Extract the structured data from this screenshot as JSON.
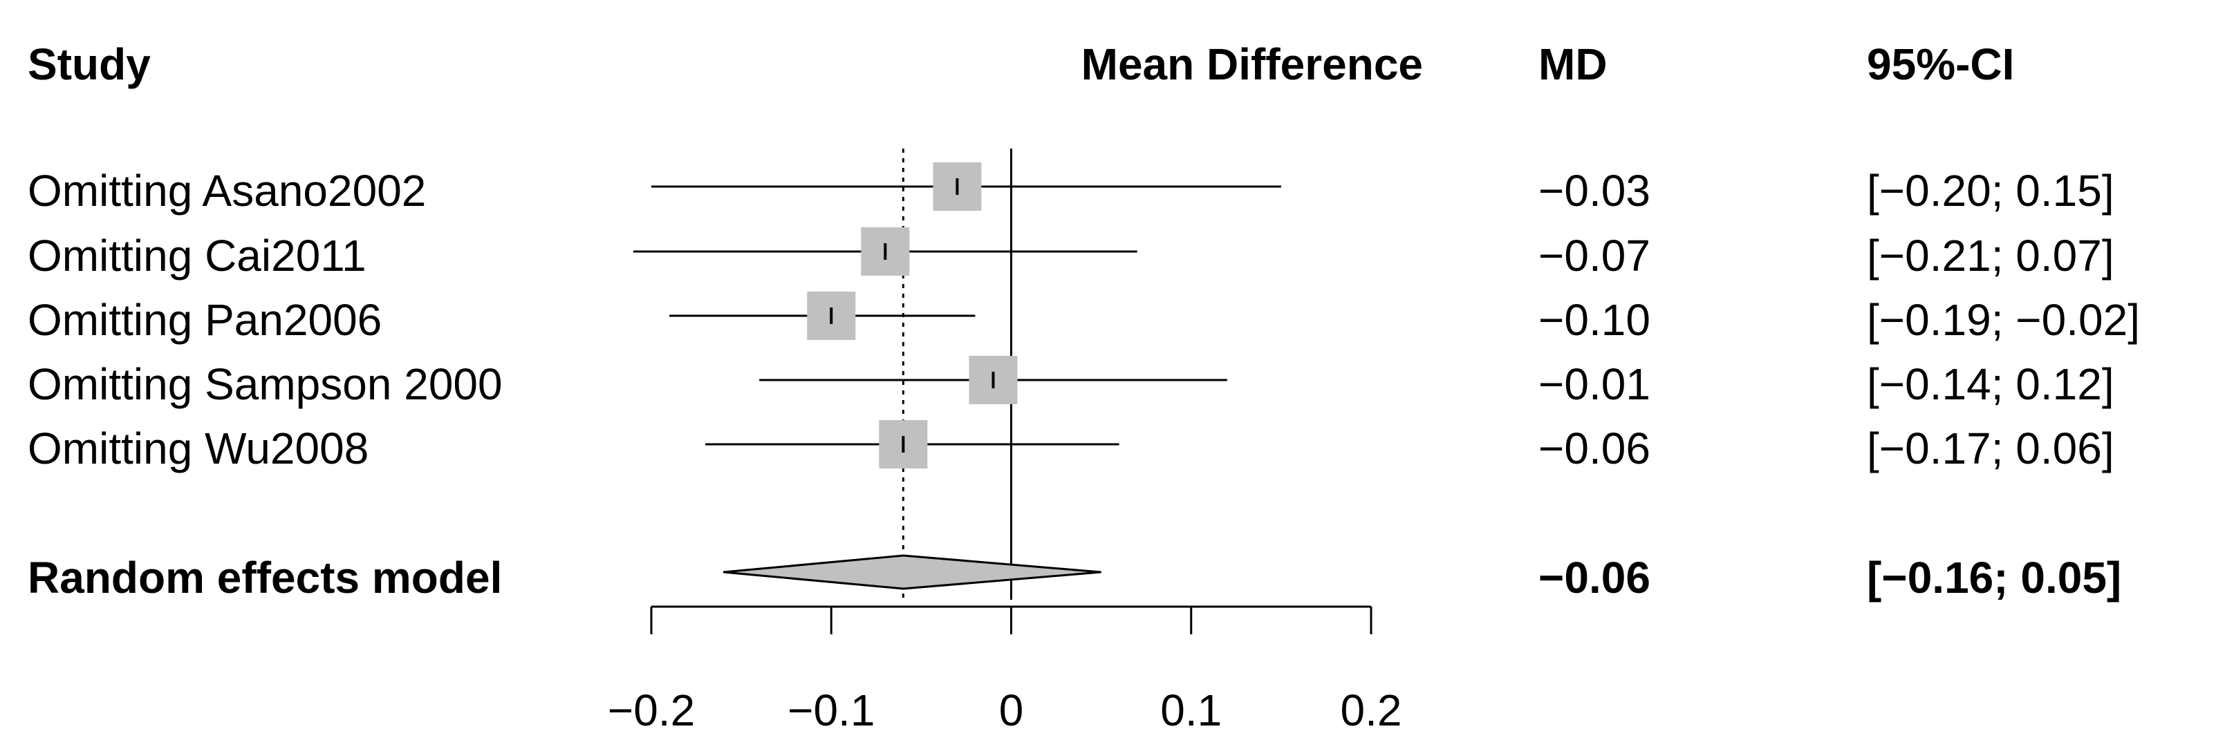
{
  "chart_data": {
    "type": "forest",
    "headers": {
      "study": "Study",
      "effect": "Mean Difference",
      "md": "MD",
      "ci": "95%-CI"
    },
    "studies": [
      {
        "label": "Omitting Asano2002",
        "md": -0.03,
        "lower": -0.2,
        "upper": 0.15,
        "md_text": "−0.03",
        "ci_text": "[−0.20;  0.15]"
      },
      {
        "label": "Omitting Cai2011",
        "md": -0.07,
        "lower": -0.21,
        "upper": 0.07,
        "md_text": "−0.07",
        "ci_text": "[−0.21;  0.07]"
      },
      {
        "label": "Omitting Pan2006",
        "md": -0.1,
        "lower": -0.19,
        "upper": -0.02,
        "md_text": "−0.10",
        "ci_text": "[−0.19; −0.02]"
      },
      {
        "label": "Omitting Sampson 2000",
        "md": -0.01,
        "lower": -0.14,
        "upper": 0.12,
        "md_text": "−0.01",
        "ci_text": "[−0.14;  0.12]"
      },
      {
        "label": "Omitting Wu2008",
        "md": -0.06,
        "lower": -0.17,
        "upper": 0.06,
        "md_text": "−0.06",
        "ci_text": "[−0.17;  0.06]"
      }
    ],
    "summary": {
      "label": "Random effects model",
      "md": -0.06,
      "lower": -0.16,
      "upper": 0.05,
      "md_text": "−0.06",
      "ci_text": "[−0.16;  0.05]"
    },
    "x_axis": {
      "range": [
        -0.2,
        0.2
      ],
      "ticks": [
        -0.2,
        -0.1,
        0,
        0.1,
        0.2
      ],
      "tick_labels": [
        "−0.2",
        "−0.1",
        "0",
        "0.1",
        "0.2"
      ]
    },
    "null_value": 0,
    "pooled_line": -0.06
  }
}
